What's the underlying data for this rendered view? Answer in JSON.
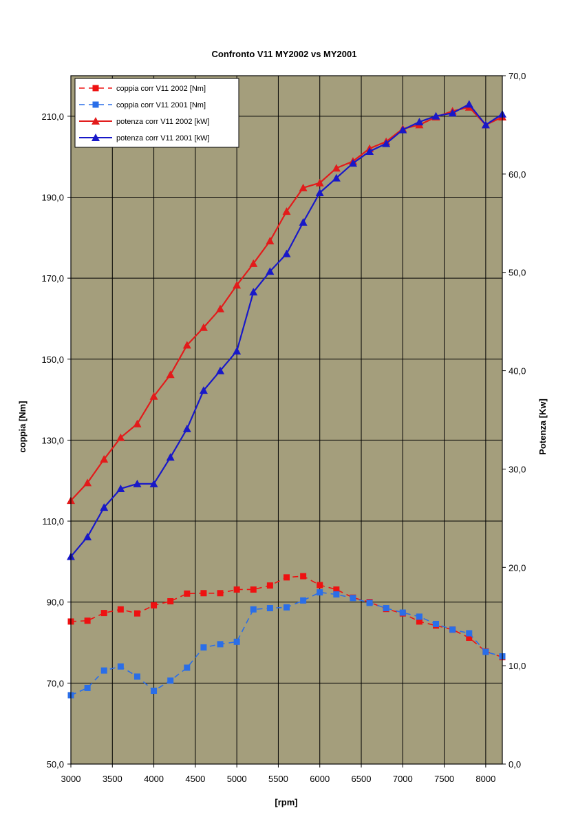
{
  "chart_data": {
    "type": "line",
    "title": "Confronto V11 MY2002 vs MY2001",
    "xlabel": "[rpm]",
    "ylabel_left": "coppia [Nm]",
    "ylabel_right": "Potenza [Kw]",
    "xlim": [
      3000,
      8200
    ],
    "ylim_left": [
      50,
      220
    ],
    "ylim_right": [
      0,
      70
    ],
    "x_ticks": [
      3000,
      3500,
      4000,
      4500,
      5000,
      5500,
      6000,
      6500,
      7000,
      7500,
      8000
    ],
    "y_left_ticks": [
      "50,0",
      "70,0",
      "90,0",
      "110,0",
      "130,0",
      "150,0",
      "170,0",
      "190,0",
      "210,0"
    ],
    "y_right_ticks": [
      "0,0",
      "10,0",
      "20,0",
      "30,0",
      "40,0",
      "50,0",
      "60,0",
      "70,0"
    ],
    "grid": true,
    "legend_position": "top-left",
    "x": [
      3000,
      3200,
      3400,
      3600,
      3800,
      4000,
      4200,
      4400,
      4600,
      4800,
      5000,
      5200,
      5400,
      5600,
      5800,
      6000,
      6200,
      6400,
      6600,
      6800,
      7000,
      7200,
      7400,
      7600,
      7800,
      8000,
      8200
    ],
    "series": [
      {
        "name": "coppia corr V11 2002 [Nm]",
        "axis": "left",
        "color": "#ee1111",
        "marker": "square",
        "dashed": true,
        "values": [
          85.2,
          85.4,
          87.3,
          88.2,
          87.2,
          89.2,
          90.2,
          92.1,
          92.2,
          92.2,
          93.1,
          93.1,
          94.1,
          96.1,
          96.4,
          94.2,
          93.1,
          91.1,
          90.0,
          88.3,
          87.2,
          85.2,
          84.2,
          83.2,
          81.2,
          77.8,
          76.4
        ]
      },
      {
        "name": "coppia corr V11 2001 [Nm]",
        "axis": "left",
        "color": "#2a6ee8",
        "marker": "square",
        "dashed": true,
        "values": [
          67.0,
          68.8,
          73.1,
          74.1,
          71.6,
          68.1,
          70.6,
          73.8,
          78.8,
          79.6,
          80.2,
          88.2,
          88.5,
          88.7,
          90.4,
          92.4,
          91.9,
          91.0,
          89.8,
          88.5,
          87.4,
          86.4,
          84.6,
          83.2,
          82.3,
          77.7,
          76.6
        ]
      },
      {
        "name": "potenza corr V11 2002 [kW]",
        "axis": "right",
        "color": "#e21b1b",
        "marker": "triangle",
        "dashed": false,
        "values": [
          26.8,
          28.6,
          31.0,
          33.2,
          34.6,
          37.4,
          39.6,
          42.6,
          44.4,
          46.3,
          48.7,
          50.9,
          53.2,
          56.2,
          58.6,
          59.1,
          60.6,
          61.3,
          62.6,
          63.3,
          64.6,
          65.0,
          65.8,
          66.4,
          66.8,
          65.0,
          65.8
        ]
      },
      {
        "name": "potenza corr V11 2001 [kW]",
        "axis": "right",
        "color": "#1818c8",
        "marker": "triangle",
        "dashed": false,
        "values": [
          21.1,
          23.1,
          26.1,
          28.0,
          28.5,
          28.5,
          31.2,
          34.1,
          38.0,
          40.0,
          42.0,
          48.0,
          50.1,
          51.9,
          55.1,
          58.1,
          59.6,
          61.1,
          62.3,
          63.1,
          64.5,
          65.3,
          65.9,
          66.2,
          67.1,
          65.0,
          66.1
        ]
      }
    ]
  },
  "colors": {
    "plot_background": "#a49e7c",
    "grid": "#000000"
  }
}
